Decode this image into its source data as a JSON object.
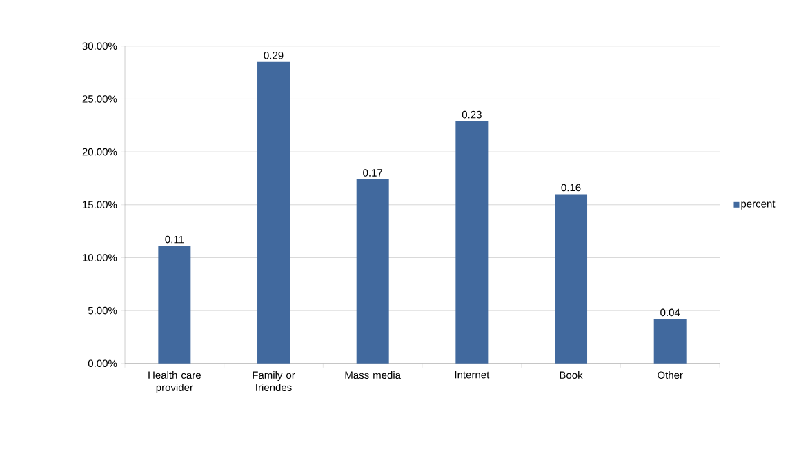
{
  "chart_data": {
    "type": "bar",
    "categories": [
      "Health care provider",
      "Family or friendes",
      "Mass media",
      "Internet",
      "Book",
      "Other"
    ],
    "series": [
      {
        "name": "percent",
        "color": "#41699e",
        "values": [
          0.111,
          0.285,
          0.174,
          0.229,
          0.16,
          0.042
        ],
        "value_labels": [
          "0.11",
          "0.29",
          "0.17",
          "0.23",
          "0.16",
          "0.04"
        ]
      }
    ],
    "ylim": [
      0,
      0.3
    ],
    "yticks": [
      {
        "value": 0,
        "label": "0.00%"
      },
      {
        "value": 0.05,
        "label": "5.00%"
      },
      {
        "value": 0.1,
        "label": "10.00%"
      },
      {
        "value": 0.15,
        "label": "15.00%"
      },
      {
        "value": 0.2,
        "label": "20.00%"
      },
      {
        "value": 0.25,
        "label": "25.00%"
      },
      {
        "value": 0.3,
        "label": "30.00%"
      }
    ],
    "grid": "y",
    "legend": "right"
  }
}
